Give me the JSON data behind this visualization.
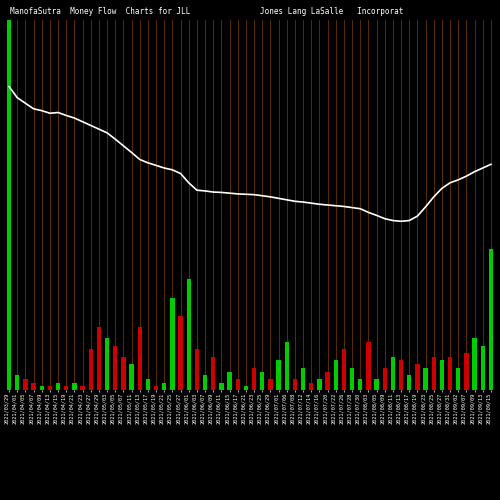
{
  "title_left": "ManofaSutra  Money Flow  Charts for JLL",
  "title_right": "Jones Lang LaSalle   Incorporat",
  "background_color": "#000000",
  "bar_color_positive": "#00cc00",
  "bar_color_negative": "#cc0000",
  "line_color": "#ffffff",
  "grid_line_color": "#8B4500",
  "n_bars": 60,
  "bar_values": [
    1.0,
    0.04,
    0.03,
    0.02,
    0.01,
    0.01,
    0.02,
    0.01,
    0.02,
    0.01,
    0.11,
    0.17,
    0.14,
    0.12,
    0.09,
    0.07,
    0.17,
    0.03,
    0.01,
    0.02,
    0.25,
    0.2,
    0.3,
    0.11,
    0.04,
    0.09,
    0.02,
    0.05,
    0.03,
    0.01,
    0.06,
    0.05,
    0.03,
    0.08,
    0.13,
    0.03,
    0.06,
    0.02,
    0.03,
    0.05,
    0.08,
    0.11,
    0.06,
    0.03,
    0.13,
    0.03,
    0.06,
    0.09,
    0.08,
    0.04,
    0.07,
    0.06,
    0.09,
    0.08,
    0.09,
    0.06,
    0.1,
    0.14,
    0.12,
    0.38
  ],
  "bar_signs": [
    1,
    1,
    -1,
    -1,
    1,
    -1,
    1,
    -1,
    1,
    -1,
    -1,
    -1,
    1,
    -1,
    -1,
    1,
    -1,
    1,
    -1,
    1,
    1,
    -1,
    1,
    -1,
    1,
    -1,
    1,
    1,
    -1,
    1,
    -1,
    1,
    -1,
    1,
    1,
    -1,
    1,
    -1,
    1,
    -1,
    1,
    -1,
    1,
    1,
    -1,
    1,
    -1,
    1,
    -1,
    1,
    -1,
    1,
    -1,
    1,
    -1,
    1,
    -1,
    1,
    1,
    1
  ],
  "line_values": [
    0.82,
    0.79,
    0.775,
    0.76,
    0.755,
    0.748,
    0.75,
    0.742,
    0.735,
    0.725,
    0.715,
    0.705,
    0.695,
    0.678,
    0.66,
    0.642,
    0.623,
    0.614,
    0.607,
    0.6,
    0.595,
    0.585,
    0.56,
    0.54,
    0.538,
    0.535,
    0.534,
    0.532,
    0.53,
    0.529,
    0.528,
    0.525,
    0.522,
    0.518,
    0.514,
    0.51,
    0.508,
    0.505,
    0.502,
    0.5,
    0.498,
    0.496,
    0.493,
    0.49,
    0.48,
    0.472,
    0.463,
    0.458,
    0.456,
    0.458,
    0.47,
    0.495,
    0.522,
    0.545,
    0.56,
    0.568,
    0.578,
    0.59,
    0.6,
    0.61
  ],
  "xlabels": [
    "2021/03/29",
    "2021/04/01",
    "2021/04/05",
    "2021/04/07",
    "2021/04/09",
    "2021/04/13",
    "2021/04/15",
    "2021/04/19",
    "2021/04/21",
    "2021/04/23",
    "2021/04/27",
    "2021/04/29",
    "2021/05/03",
    "2021/05/05",
    "2021/05/07",
    "2021/05/11",
    "2021/05/13",
    "2021/05/17",
    "2021/05/19",
    "2021/05/21",
    "2021/05/25",
    "2021/05/27",
    "2021/06/01",
    "2021/06/03",
    "2021/06/07",
    "2021/06/09",
    "2021/06/11",
    "2021/06/15",
    "2021/06/17",
    "2021/06/21",
    "2021/06/23",
    "2021/06/25",
    "2021/06/29",
    "2021/07/01",
    "2021/07/06",
    "2021/07/08",
    "2021/07/12",
    "2021/07/14",
    "2021/07/16",
    "2021/07/20",
    "2021/07/22",
    "2021/07/26",
    "2021/07/28",
    "2021/07/30",
    "2021/08/03",
    "2021/08/05",
    "2021/08/09",
    "2021/08/11",
    "2021/08/13",
    "2021/08/17",
    "2021/08/19",
    "2021/08/23",
    "2021/08/25",
    "2021/08/27",
    "2021/08/31",
    "2021/09/02",
    "2021/09/07",
    "2021/09/09",
    "2021/09/13",
    "2021/09/15"
  ],
  "title_fontsize": 5.5,
  "label_fontsize": 3.8,
  "fig_width": 5.0,
  "fig_height": 5.0,
  "dpi": 100
}
